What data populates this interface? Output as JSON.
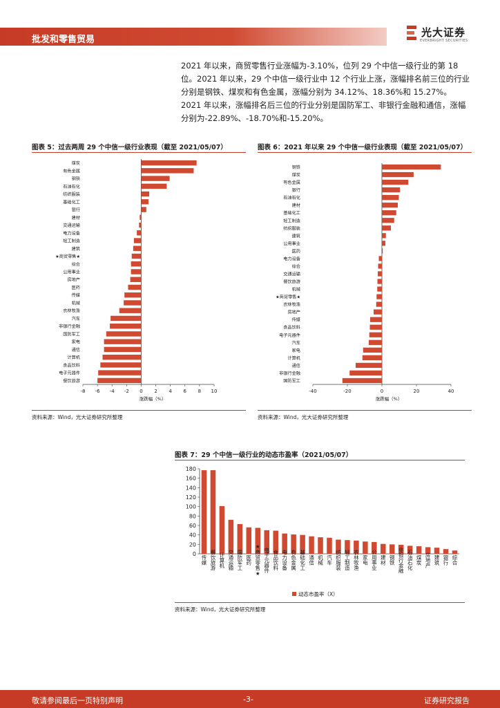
{
  "header": {
    "section": "批发和零售贸易",
    "logo_cn": "光大证券",
    "logo_en": "EVERBRIGHT SECURITIES"
  },
  "summary": "2021 年以来，商贸零售行业涨幅为-3.10%，位列 29 个中信一级行业的第 18 位。2021 年以来，29 个中信一级行业中 12 个行业上涨，涨幅排名前三位的行业分别是钢铁、煤炭和有色金属，涨幅分别为 34.12%、18.36%和 15.27%。2021 年以来，涨幅排名后三位的行业分别是国防军工、非银行金融和通信，涨幅分别为-22.89%、-18.70%和-15.20%。",
  "colors": {
    "accent": "#c63b25",
    "bar": "#d04a32"
  },
  "chart_data": [
    {
      "type": "bar",
      "orientation": "horizontal",
      "title": "图表 5：过去两周 29 个中信一级行业表现（截至 2021/05/07）",
      "xlabel": "涨跌幅（%）",
      "xlim": [
        -8,
        10
      ],
      "xticks": [
        -8,
        -6,
        -4,
        -2,
        0,
        2,
        4,
        6,
        8,
        10
      ],
      "categories": [
        "煤炭",
        "有色金属",
        "钢铁",
        "石油石化",
        "纺织服装",
        "基础化工",
        "银行",
        "建材",
        "交通运输",
        "电力设备",
        "轻工制造",
        "建筑",
        "★商贸零售★",
        "综合",
        "公用事业",
        "房地产",
        "医药",
        "传媒",
        "机械",
        "农林牧渔",
        "汽车",
        "非银行金融",
        "国防军工",
        "家电",
        "通信",
        "计算机",
        "食品饮料",
        "电子元器件",
        "餐饮旅游"
      ],
      "values": [
        7.6,
        7.2,
        3.9,
        3.5,
        1.1,
        1.0,
        0.7,
        -0.2,
        -0.3,
        -0.6,
        -1.0,
        -1.1,
        -1.3,
        -1.4,
        -1.4,
        -1.5,
        -1.8,
        -2.3,
        -2.4,
        -3.0,
        -4.2,
        -4.3,
        -4.8,
        -5.1,
        -5.1,
        -5.3,
        -5.6,
        -5.9,
        -6.0
      ],
      "source": "资料来源：Wind，光大证券研究所整理"
    },
    {
      "type": "bar",
      "orientation": "horizontal",
      "title": "图表 6：2021 年以来 29 个中信一级行业表现（截至 2021/05/07）",
      "xlabel": "涨跌幅（%）",
      "xlim": [
        -40,
        40
      ],
      "xticks": [
        -40,
        -20,
        0,
        20,
        40
      ],
      "categories": [
        "钢铁",
        "煤炭",
        "有色金属",
        "银行",
        "石油石化",
        "建材",
        "基础化工",
        "轻工制造",
        "纺织服装",
        "建筑",
        "公用事业",
        "医药",
        "电力设备",
        "综合",
        "交通运输",
        "餐饮旅游",
        "机械",
        "★商贸零售★",
        "农林牧渔",
        "房地产",
        "传媒",
        "食品饮料",
        "电子元器件",
        "汽车",
        "家电",
        "计算机",
        "通信",
        "非银行金融",
        "国防军工"
      ],
      "values": [
        34.12,
        18.36,
        15.27,
        10.5,
        9.8,
        9.2,
        8.3,
        7.1,
        5.2,
        2.3,
        2.0,
        0.5,
        -1.8,
        -2.2,
        -2.4,
        -2.6,
        -2.7,
        -3.1,
        -3.3,
        -4.8,
        -6.8,
        -7.0,
        -7.3,
        -7.6,
        -10.9,
        -11.3,
        -15.2,
        -18.7,
        -22.89
      ],
      "source": "资料来源：Wind，光大证券研究所整理"
    },
    {
      "type": "bar",
      "title": "图表 7：29 个中信一级行业的动态市盈率（2021/05/07）",
      "legend": "动态市盈率（X）",
      "ylim": [
        0,
        180
      ],
      "yticks": [
        0,
        20,
        40,
        60,
        80,
        100,
        120,
        140,
        160,
        180
      ],
      "categories": [
        "传媒",
        "餐饮旅游",
        "计算机",
        "交通运输",
        "国防军工",
        "医药",
        "★商贸零售★",
        "电子元器件",
        "食品饮料",
        "电力设备",
        "有色金属",
        "基础化工",
        "通信",
        "机械",
        "汽车",
        "纺织服装",
        "轻工制造",
        "农林牧渔",
        "家电",
        "公用事业",
        "建材",
        "钢铁",
        "非银行金融",
        "石油石化",
        "煤炭",
        "房地产",
        "建筑",
        "银行",
        "综合"
      ],
      "values": [
        177,
        177,
        101,
        72,
        63,
        56,
        55,
        50,
        49,
        43,
        41,
        40,
        37,
        35,
        34,
        30,
        29,
        28,
        26,
        25,
        21,
        20,
        19,
        17,
        16,
        14,
        13,
        10,
        7
      ],
      "source": "资料来源：Wind，光大证券研究所整理"
    }
  ],
  "footer": {
    "left": "敬请参阅最后一页特别声明",
    "page": "-3-",
    "right": "证券研究报告"
  }
}
